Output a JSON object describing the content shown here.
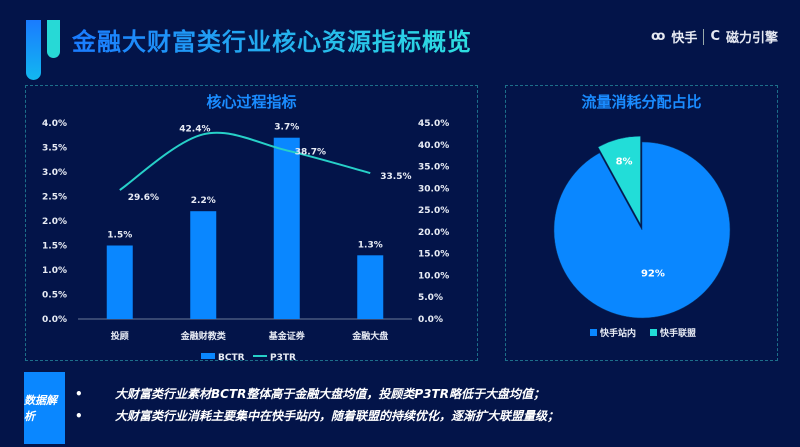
{
  "header": {
    "title": "金融大财富类行业核心资源指标概览",
    "brand1": "快手",
    "brand2": "磁力引擎"
  },
  "chart_data": [
    {
      "type": "bar+line",
      "title": "核心过程指标",
      "categories": [
        "投顾",
        "金融财教类",
        "基金证券",
        "金融大盘"
      ],
      "series": [
        {
          "name": "BCTR",
          "type": "bar",
          "axis": "left",
          "values": [
            1.5,
            2.2,
            3.7,
            1.3
          ],
          "labels": [
            "1.5%",
            "2.2%",
            "3.7%",
            "1.3%"
          ],
          "color": "#0a87ff"
        },
        {
          "name": "P3TR",
          "type": "line",
          "axis": "right",
          "values": [
            29.6,
            42.4,
            38.7,
            33.5
          ],
          "labels": [
            "29.6%",
            "42.4%",
            "38.7%",
            "33.5%"
          ],
          "color": "#27d0c8"
        }
      ],
      "yleft": {
        "ylim": [
          0,
          4
        ],
        "ticks": [
          "0.0%",
          "0.5%",
          "1.0%",
          "1.5%",
          "2.0%",
          "2.5%",
          "3.0%",
          "3.5%",
          "4.0%"
        ]
      },
      "yright": {
        "ylim": [
          0,
          45
        ],
        "ticks": [
          "0.0%",
          "5.0%",
          "10.0%",
          "15.0%",
          "20.0%",
          "25.0%",
          "30.0%",
          "35.0%",
          "40.0%",
          "45.0%"
        ]
      },
      "legend": "bottom"
    },
    {
      "type": "pie",
      "title": "流量消耗分配占比",
      "slices": [
        {
          "name": "快手站内",
          "value": 92,
          "label": "92%",
          "color": "#0a87ff"
        },
        {
          "name": "快手联盟",
          "value": 8,
          "label": "8%",
          "color": "#22ddd8"
        }
      ],
      "legend": "bottom"
    }
  ],
  "analysis": {
    "label": "数据解析",
    "points": [
      "大财富类行业素材BCTR整体高于金融大盘均值，投顾类P3TR略低于大盘均值；",
      "大财富类行业消耗主要集中在快手站内，随着联盟的持续优化，逐渐扩大联盟量级；"
    ]
  }
}
